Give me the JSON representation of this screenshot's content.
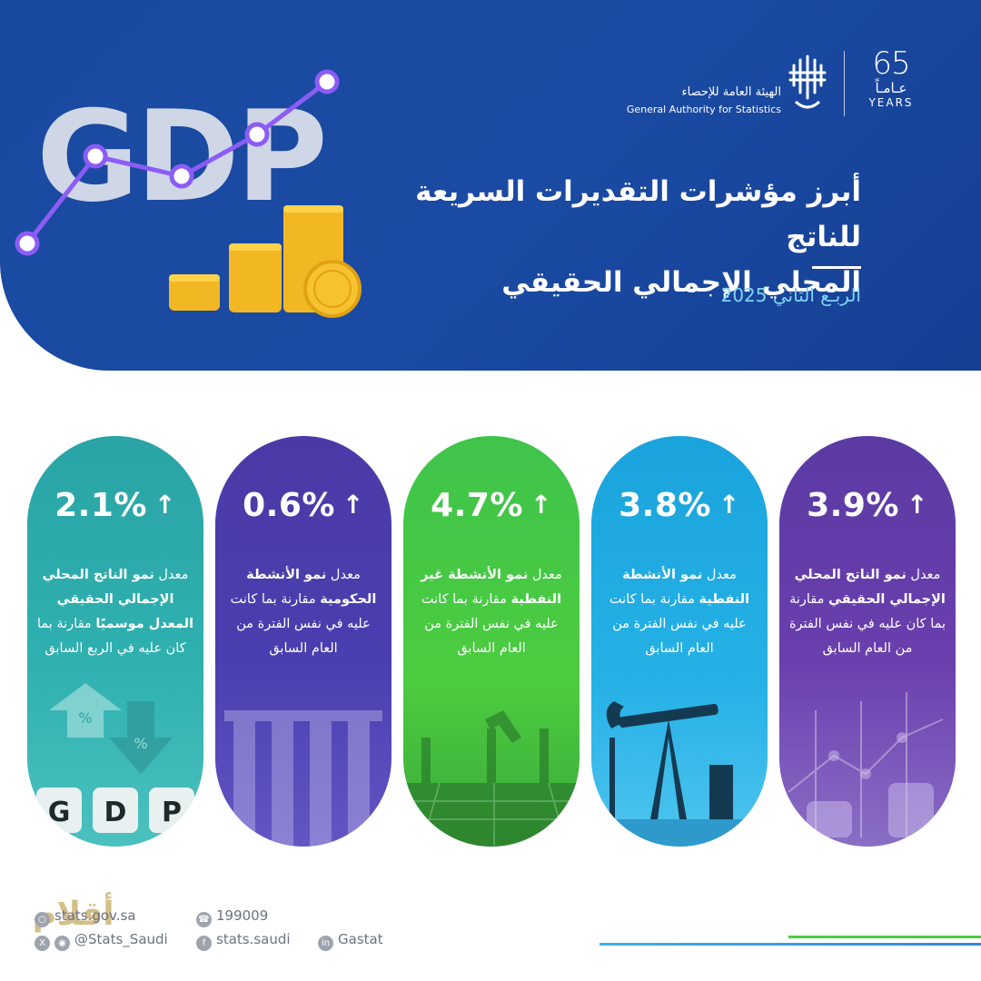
{
  "header": {
    "logo_arabic": "الهيئة العامة للإحصاء",
    "logo_english": "General Authority for Statistics",
    "anniversary_number": "65",
    "anniversary_arabic": "عـامـاً",
    "anniversary_english": "YEARS",
    "art_text": "GDP",
    "title_line1": "أبرز مؤشرات التقديرات السريعة للناتج",
    "title_line2": "المحلي الإجمالي الحقيقي",
    "subtitle": "الربـع الثاني 2025"
  },
  "cards": [
    {
      "value": "3.9%",
      "trend": "up",
      "pre": "معدل ",
      "bold": "نمو الناتج المحلي الإجمالي الحقيقي",
      "post": " مقارنة بما كان عليه في نفس الفترة من العام السابق",
      "color": "#5b3aa3"
    },
    {
      "value": "3.8%",
      "trend": "up",
      "pre": "معدل ",
      "bold": "نمو الأنشطة النفطية",
      "post": " مقارنة بما كانت عليه في نفس الفترة من العام السابق",
      "color": "#1aa3dc"
    },
    {
      "value": "4.7%",
      "trend": "up",
      "pre": "معدل ",
      "bold": "نمو الأنشطة غير النفطية",
      "post": " مقارنة بما كانت عليه في نفس الفترة من العام السابق",
      "color": "#3fc44b"
    },
    {
      "value": "0.6%",
      "trend": "up",
      "pre": "معدل ",
      "bold": "نمو الأنشطة الحكومية",
      "post": " مقارنة بما كانت عليه في نفس الفترة من العام السابق",
      "color": "#4b3aa6"
    },
    {
      "value": "2.1%",
      "trend": "up",
      "pre": "معدل ",
      "bold": "نمو الناتج المحلي الإجمالي الحقيقي المعدل موسميًا",
      "post": " مقارنة بما كان عليه في الربع السابق",
      "color": "#2aa4a6"
    }
  ],
  "footer": {
    "website": "stats.gov.sa",
    "phone": "199009",
    "social_handle": "@Stats_Saudi",
    "facebook": "stats.saudi",
    "linkedin": "Gastat"
  }
}
